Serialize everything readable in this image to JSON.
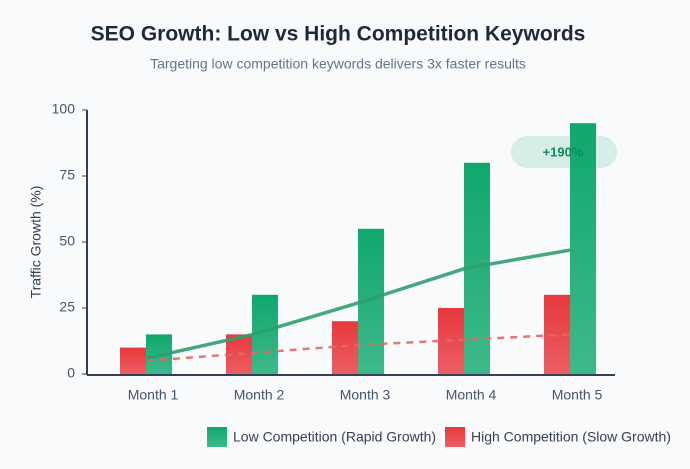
{
  "chart_data": {
    "type": "bar",
    "title": "SEO Growth: Low vs High Competition Keywords",
    "subtitle": "Targeting low competition keywords delivers 3x faster results",
    "y_label": "Traffic Growth (%)",
    "categories": [
      "Month 1",
      "Month 2",
      "Month 3",
      "Month 4",
      "Month 5"
    ],
    "series": [
      {
        "name": "Low Competition (Rapid Growth)",
        "color": "#10a86e",
        "values": [
          15,
          30,
          55,
          80,
          95
        ]
      },
      {
        "name": "High Competition (Slow Growth)",
        "color": "#e8383d",
        "values": [
          10,
          15,
          20,
          25,
          30
        ]
      }
    ],
    "trend_lines": [
      {
        "color": "#2f9e6e",
        "dashed": false,
        "values": [
          6,
          15,
          27,
          40,
          47
        ]
      },
      {
        "color": "#e06a66",
        "dashed": true,
        "values": [
          5,
          8,
          11,
          13,
          15
        ]
      }
    ],
    "annotation": "+190%",
    "ylim": [
      0,
      100
    ],
    "yticks": [
      0,
      25,
      50,
      75,
      100
    ],
    "grid": false
  }
}
